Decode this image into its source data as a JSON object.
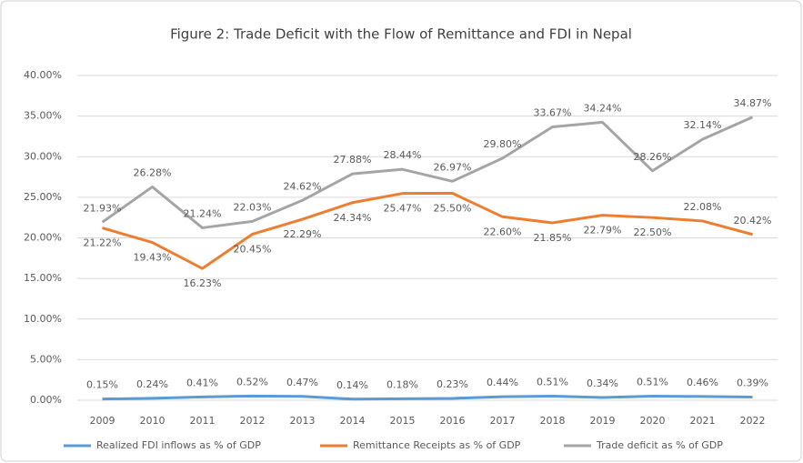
{
  "chart_data": {
    "type": "line",
    "title": "Figure 2: Trade Deficit with the Flow of Remittance and FDI in Nepal",
    "categories": [
      "2009",
      "2010",
      "2011",
      "2012",
      "2013",
      "2014",
      "2015",
      "2016",
      "2017",
      "2018",
      "2019",
      "2020",
      "2021",
      "2022"
    ],
    "series": [
      {
        "name": "Realized FDI inflows as % of GDP",
        "color": "#5b9bd5",
        "values": [
          0.15,
          0.24,
          0.41,
          0.52,
          0.47,
          0.14,
          0.18,
          0.23,
          0.44,
          0.51,
          0.34,
          0.51,
          0.46,
          0.39
        ],
        "value_labels": [
          "0.15%",
          "0.24%",
          "0.41%",
          "0.52%",
          "0.47%",
          "0.14%",
          "0.18%",
          "0.23%",
          "0.44%",
          "0.51%",
          "0.34%",
          "0.51%",
          "0.46%",
          "0.39%"
        ]
      },
      {
        "name": "Remittance Receipts as % of GDP",
        "color": "#ed7d31",
        "values": [
          21.22,
          19.43,
          16.23,
          20.45,
          22.29,
          24.34,
          25.47,
          25.5,
          22.6,
          21.85,
          22.79,
          22.5,
          22.08,
          20.42
        ],
        "value_labels": [
          "21.22%",
          "19.43%",
          "16.23%",
          "20.45%",
          "22.29%",
          "24.34%",
          "25.47%",
          "25.50%",
          "22.60%",
          "21.85%",
          "22.79%",
          "22.50%",
          "22.08%",
          "20.42%"
        ]
      },
      {
        "name": "Trade deficit as % of GDP",
        "color": "#a5a5a5",
        "values": [
          21.93,
          26.28,
          21.24,
          22.03,
          24.62,
          27.88,
          28.44,
          26.97,
          29.8,
          33.67,
          34.24,
          28.26,
          32.14,
          34.87
        ],
        "value_labels": [
          "21.93%",
          "26.28%",
          "21.24%",
          "22.03%",
          "24.62%",
          "27.88%",
          "28.44%",
          "26.97%",
          "29.80%",
          "33.67%",
          "34.24%",
          "28.26%",
          "32.14%",
          "34.87%"
        ]
      }
    ],
    "ylim": [
      0,
      40
    ],
    "yticks": [
      {
        "value": 0,
        "label": "0.00%"
      },
      {
        "value": 5,
        "label": "5.00%"
      },
      {
        "value": 10,
        "label": "10.00%"
      },
      {
        "value": 15,
        "label": "15.00%"
      },
      {
        "value": 20,
        "label": "20.00%"
      },
      {
        "value": 25,
        "label": "25.00%"
      },
      {
        "value": 30,
        "label": "30.00%"
      },
      {
        "value": 35,
        "label": "35.00%"
      },
      {
        "value": 40,
        "label": "40.00%"
      }
    ],
    "grid": true,
    "legend": "bottom"
  }
}
